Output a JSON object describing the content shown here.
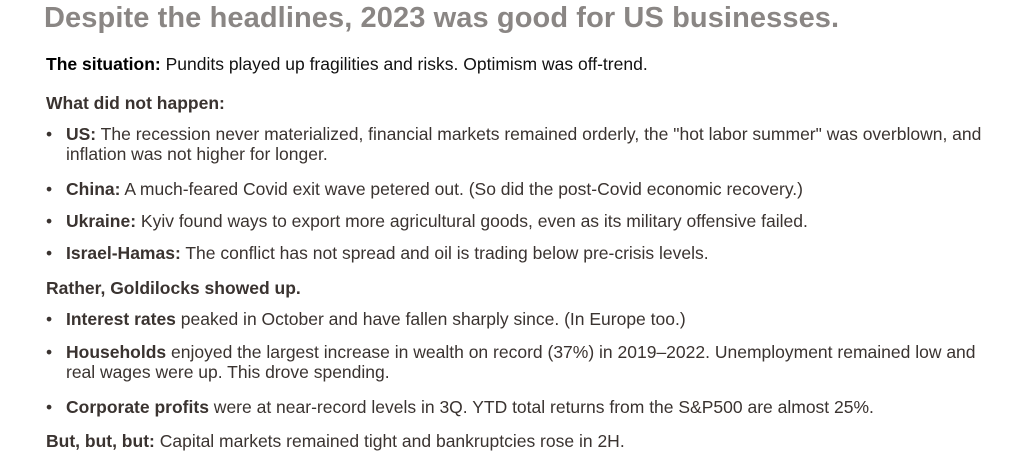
{
  "title": "Despite the headlines, 2023 was good for US businesses.",
  "situation": {
    "label": "The situation:",
    "text": " Pundits played up fragilities and risks. Optimism was off-trend."
  },
  "sections": [
    {
      "heading": "What did not happen:",
      "bullets": [
        {
          "label": "US:",
          "text": " The recession never materialized, financial markets remained orderly, the \"hot labor summer\" was overblown, and inflation was not higher for longer."
        },
        {
          "label": "China:",
          "text": " A much-feared Covid exit wave petered out. (So did the post-Covid economic recovery.)"
        },
        {
          "label": "Ukraine:",
          "text": " Kyiv found ways to export more agricultural goods, even as its military offensive failed."
        },
        {
          "label": "Israel-Hamas:",
          "text": " The conflict has not spread and oil is trading below pre-crisis levels."
        }
      ]
    },
    {
      "heading": "Rather, Goldilocks showed up.",
      "bullets": [
        {
          "label": "Interest rates",
          "text": " peaked in October and have fallen sharply since. (In Europe too.)"
        },
        {
          "label": "Households",
          "text": " enjoyed the largest increase in wealth on record (37%) in 2019–2022. Unemployment remained low and real wages were up. This drove spending."
        },
        {
          "label": "Corporate profits",
          "text": " were at near-record levels in 3Q. YTD total returns from the S&P500 are almost 25%."
        }
      ]
    }
  ],
  "closing": {
    "label": "But, but, but:",
    "text": " Capital markets remained tight and bankruptcies rose in 2H."
  },
  "bullet_glyph": "•"
}
